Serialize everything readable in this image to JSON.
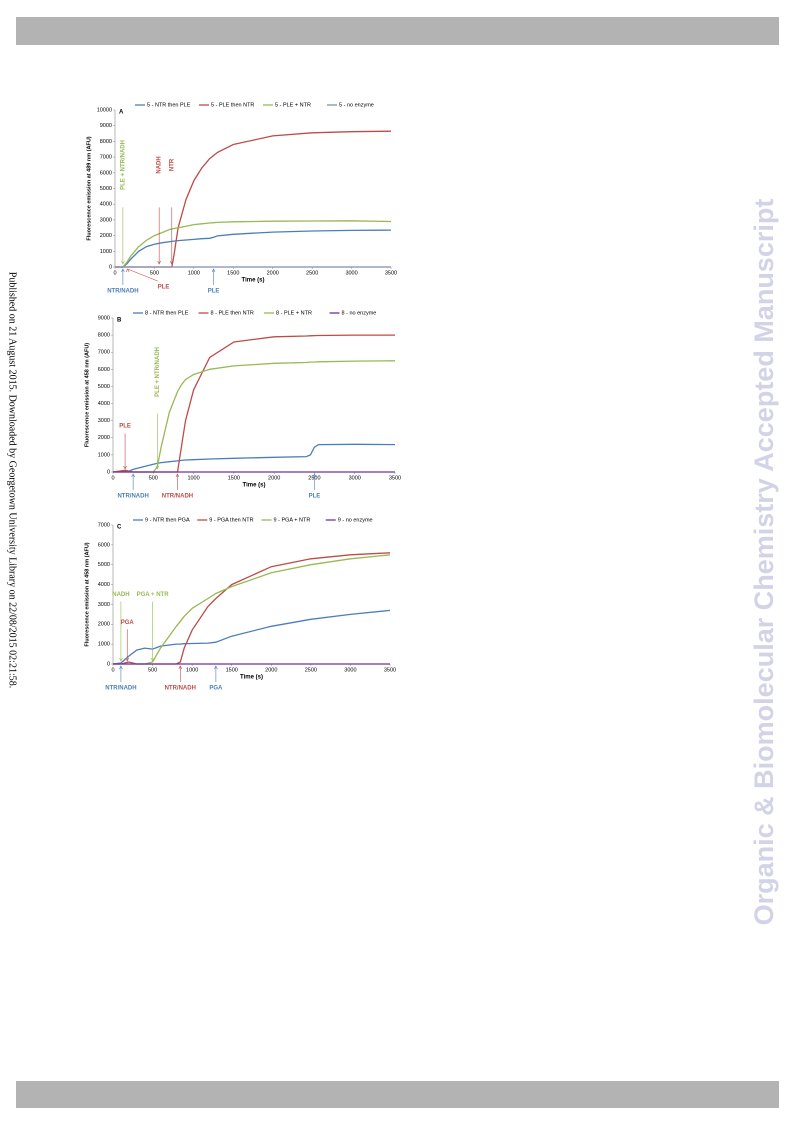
{
  "side_note": "Published on 21 August 2015. Downloaded by Georgetown University Library on 22/08/2015 02:21:58.",
  "watermark": "Organic & Biomolecular Chemistry Accepted Manuscript",
  "chart_data": [
    {
      "type": "line",
      "panel": "A",
      "y_label": "Fluorescence emission at 489 nm (AFU)",
      "x_label": "Time (s)",
      "x": [
        0,
        100,
        150,
        200,
        300,
        400,
        500,
        600,
        700,
        720,
        750,
        800,
        900,
        1000,
        1100,
        1200,
        1250,
        1300,
        1500,
        2000,
        2500,
        3000,
        3500
      ],
      "xlim": [
        0,
        3500
      ],
      "xticks": [
        0,
        500,
        1000,
        1500,
        2000,
        2500,
        3000,
        3500
      ],
      "ylim": [
        0,
        10000
      ],
      "yticks": [
        0,
        1000,
        2000,
        3000,
        4000,
        5000,
        6000,
        7000,
        8000,
        9000,
        10000
      ],
      "grid": false,
      "legend": "top",
      "series": [
        {
          "name": "5 - NTR then PLE",
          "color": "#4a7ebb",
          "values": [
            0,
            0,
            200,
            500,
            1000,
            1300,
            1450,
            1550,
            1620,
            1630,
            1650,
            1680,
            1720,
            1760,
            1800,
            1830,
            1900,
            1980,
            2080,
            2220,
            2290,
            2330,
            2350
          ]
        },
        {
          "name": "5 - PLE then NTR",
          "color": "#be4b48",
          "values": [
            0,
            0,
            0,
            0,
            0,
            0,
            0,
            0,
            0,
            0,
            800,
            2500,
            4300,
            5500,
            6300,
            6900,
            7100,
            7300,
            7800,
            8350,
            8550,
            8620,
            8650
          ]
        },
        {
          "name": "5 - PLE + NTR",
          "color": "#98b954",
          "values": [
            0,
            0,
            300,
            700,
            1300,
            1700,
            2000,
            2200,
            2400,
            2420,
            2450,
            2500,
            2600,
            2700,
            2750,
            2800,
            2820,
            2840,
            2880,
            2920,
            2930,
            2940,
            2900
          ]
        },
        {
          "name": "5 - no enzyme",
          "color": "#7f8fb0",
          "values": [
            0,
            0,
            0,
            0,
            0,
            0,
            0,
            0,
            0,
            0,
            0,
            0,
            0,
            0,
            0,
            0,
            0,
            0,
            0,
            0,
            0,
            0,
            0
          ]
        }
      ],
      "annotations": [
        {
          "text": "NTR/NADH",
          "x": 100,
          "color": "#4a7ebb",
          "placement": "below"
        },
        {
          "text": "PLE",
          "x": 160,
          "color": "#be4b48",
          "placement": "below-right"
        },
        {
          "text": "PLE",
          "x": 1250,
          "color": "#4a7ebb",
          "placement": "below"
        },
        {
          "text": "PLE + NTR/NADH",
          "x": 100,
          "color": "#98b954",
          "placement": "above-vertical"
        },
        {
          "text": "NADH",
          "x": 560,
          "color": "#be4b48",
          "placement": "above-vertical"
        },
        {
          "text": "NTR",
          "x": 720,
          "color": "#be4b48",
          "placement": "above-vertical"
        }
      ]
    },
    {
      "type": "line",
      "panel": "B",
      "y_label": "Fluorescence emission at 458 nm (AFU)",
      "x_label": "Time (s)",
      "x": [
        0,
        150,
        200,
        250,
        500,
        550,
        600,
        700,
        800,
        850,
        900,
        1000,
        1200,
        1500,
        2000,
        2400,
        2450,
        2500,
        2550,
        3000,
        3500
      ],
      "xlim": [
        0,
        3500
      ],
      "xticks": [
        0,
        500,
        1000,
        1500,
        2000,
        2500,
        3000,
        3500
      ],
      "ylim": [
        0,
        9000
      ],
      "yticks": [
        0,
        1000,
        2000,
        3000,
        4000,
        5000,
        6000,
        7000,
        8000,
        9000
      ],
      "grid": false,
      "legend": "top",
      "series": [
        {
          "name": "8 - NTR then PLE",
          "color": "#4a7ebb",
          "values": [
            0,
            50,
            50,
            150,
            450,
            500,
            550,
            600,
            650,
            680,
            700,
            720,
            760,
            800,
            860,
            900,
            1000,
            1450,
            1600,
            1620,
            1600
          ]
        },
        {
          "name": "8 - PLE then NTR",
          "color": "#be4b48",
          "values": [
            0,
            100,
            50,
            0,
            0,
            0,
            0,
            0,
            0,
            1500,
            3000,
            4800,
            6700,
            7600,
            7900,
            7950,
            7960,
            7970,
            7980,
            8000,
            8000
          ]
        },
        {
          "name": "8 - PLE + NTR",
          "color": "#98b954",
          "values": [
            0,
            0,
            0,
            0,
            0,
            300,
            1500,
            3500,
            4700,
            5100,
            5400,
            5700,
            6000,
            6200,
            6350,
            6400,
            6420,
            6430,
            6440,
            6480,
            6500
          ]
        },
        {
          "name": "8 - no enzyme",
          "color": "#7030a0",
          "values": [
            0,
            0,
            0,
            0,
            0,
            0,
            0,
            0,
            0,
            0,
            0,
            0,
            0,
            0,
            0,
            0,
            0,
            0,
            0,
            0,
            0
          ]
        }
      ],
      "annotations": [
        {
          "text": "PLE",
          "x": 150,
          "color": "#be4b48",
          "placement": "above"
        },
        {
          "text": "PLE + NTR/NADH",
          "x": 550,
          "color": "#98b954",
          "placement": "above-vertical"
        },
        {
          "text": "NTR/NADH",
          "x": 250,
          "color": "#4a7ebb",
          "placement": "below"
        },
        {
          "text": "NTR/NADH",
          "x": 800,
          "color": "#be4b48",
          "placement": "below"
        },
        {
          "text": "PLE",
          "x": 2500,
          "color": "#4a7ebb",
          "placement": "below"
        }
      ]
    },
    {
      "type": "line",
      "panel": "C",
      "y_label": "Fluorescence emission at 458 nm (AFU)",
      "x_label": "Time (s)",
      "x": [
        0,
        100,
        200,
        300,
        400,
        500,
        600,
        800,
        850,
        900,
        1000,
        1200,
        1300,
        1500,
        2000,
        2500,
        3000,
        3500
      ],
      "xlim": [
        0,
        3500
      ],
      "xticks": [
        0,
        500,
        1000,
        1500,
        2000,
        2500,
        3000,
        3500
      ],
      "ylim": [
        0,
        7000
      ],
      "yticks": [
        0,
        1000,
        2000,
        3000,
        4000,
        5000,
        6000,
        7000
      ],
      "grid": false,
      "legend": "top",
      "series": [
        {
          "name": "9 - NTR then PGA",
          "color": "#4a7ebb",
          "values": [
            0,
            50,
            400,
            700,
            800,
            750,
            900,
            1000,
            1000,
            1020,
            1030,
            1050,
            1100,
            1400,
            1900,
            2250,
            2500,
            2700
          ]
        },
        {
          "name": "9 - PGA then NTR",
          "color": "#be4b48",
          "values": [
            0,
            0,
            100,
            0,
            0,
            0,
            0,
            0,
            100,
            800,
            1700,
            2900,
            3300,
            4000,
            4900,
            5300,
            5500,
            5600
          ]
        },
        {
          "name": "9 - PGA + NTR",
          "color": "#98b954",
          "values": [
            0,
            0,
            0,
            0,
            0,
            100,
            800,
            1900,
            2150,
            2400,
            2800,
            3300,
            3550,
            3900,
            4600,
            5000,
            5300,
            5500
          ]
        },
        {
          "name": "9 - no enzyme",
          "color": "#7030a0",
          "values": [
            0,
            0,
            0,
            0,
            0,
            0,
            0,
            0,
            0,
            0,
            0,
            0,
            0,
            0,
            0,
            0,
            0,
            0
          ]
        }
      ],
      "annotations": [
        {
          "text": "NADH",
          "x": 100,
          "color": "#98b954",
          "placement": "above-high"
        },
        {
          "text": "PGA",
          "x": 180,
          "color": "#be4b48",
          "placement": "above"
        },
        {
          "text": "PGA + NTR",
          "x": 500,
          "color": "#98b954",
          "placement": "above-high"
        },
        {
          "text": "NTR/NADH",
          "x": 100,
          "color": "#4a7ebb",
          "placement": "below"
        },
        {
          "text": "NTR/NADH",
          "x": 850,
          "color": "#be4b48",
          "placement": "below"
        },
        {
          "text": "PGA",
          "x": 1300,
          "color": "#4a7ebb",
          "placement": "below"
        }
      ]
    }
  ]
}
